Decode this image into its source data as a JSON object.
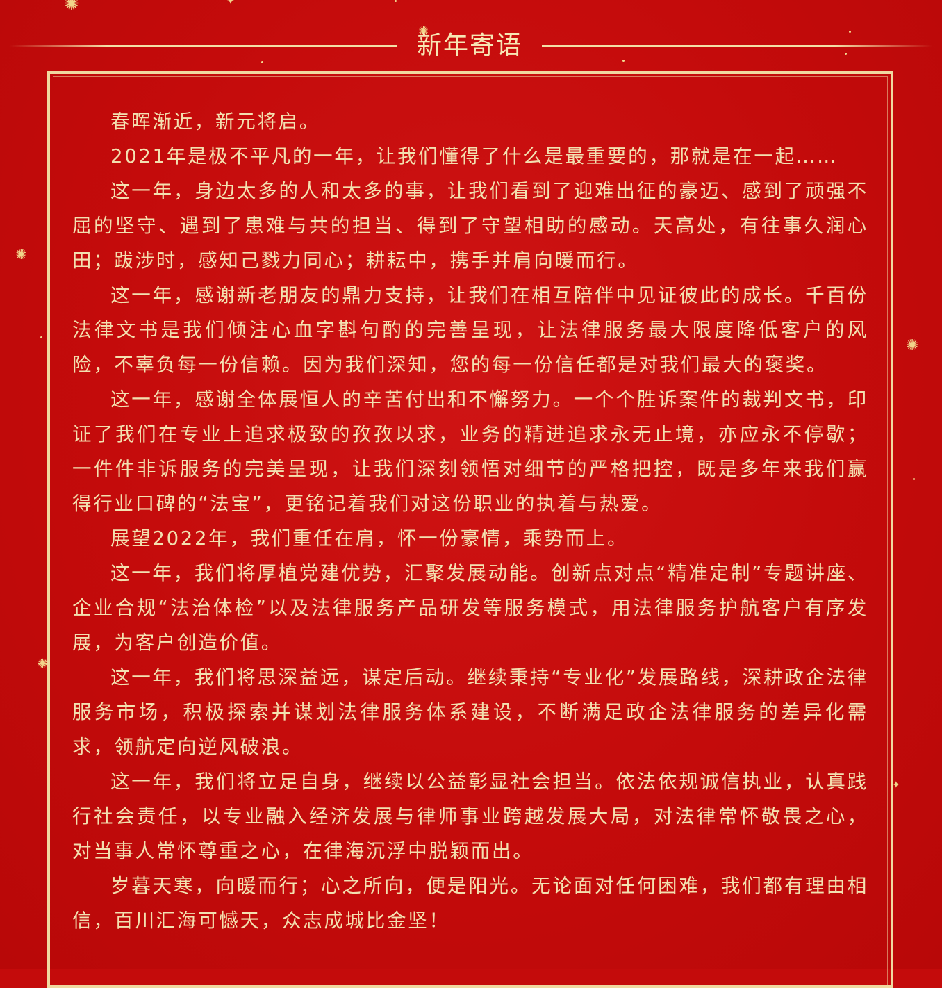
{
  "title": "新年寄语",
  "paragraphs": [
    "春晖渐近，新元将启。",
    "2021年是极不平凡的一年，让我们懂得了什么是最重要的，那就是在一起……",
    "这一年，身边太多的人和太多的事，让我们看到了迎难出征的豪迈、感到了顽强不屈的坚守、遇到了患难与共的担当、得到了守望相助的感动。天高处，有往事久润心田；跋涉时，感知己戮力同心；耕耘中，携手并肩向暖而行。",
    "这一年，感谢新老朋友的鼎力支持，让我们在相互陪伴中见证彼此的成长。千百份法律文书是我们倾注心血字斟句酌的完善呈现，让法律服务最大限度降低客户的风险，不辜负每一份信赖。因为我们深知，您的每一份信任都是对我们最大的褒奖。",
    "这一年，感谢全体展恒人的辛苦付出和不懈努力。一个个胜诉案件的裁判文书，印证了我们在专业上追求极致的孜孜以求，业务的精进追求永无止境，亦应永不停歇；一件件非诉服务的完美呈现，让我们深刻领悟对细节的严格把控，既是多年来我们赢得行业口碑的“法宝”，更铭记着我们对这份职业的执着与热爱。",
    "展望2022年，我们重任在肩，怀一份豪情，乘势而上。",
    "这一年，我们将厚植党建优势，汇聚发展动能。创新点对点“精准定制”专题讲座、企业合规“法治体检”以及法律服务产品研发等服务模式，用法律服务护航客户有序发展，为客户创造价值。",
    "这一年，我们将思深益远，谋定后动。继续秉持“专业化”发展路线，深耕政企法律服务市场，积极探索并谋划法律服务体系建设，不断满足政企法律服务的差异化需求，领航定向逆风破浪。",
    " 这一年，我们将立足自身，继续以公益彰显社会担当。依法依规诚信执业，认真践行社会责任，以专业融入经济发展与律师事业跨越发展大局，对法律常怀敬畏之心，对当事人常怀尊重之心，在律海沉浮中脱颖而出。",
    "岁暮天寒，向暖而行；心之所向，便是阳光。无论面对任何困难，我们都有理由相信，百川汇海可憾天，众志成城比金坚！"
  ],
  "colors": {
    "background": "#c40b0b",
    "gold": "#f0d8a0",
    "text": "#f3e0b0"
  },
  "decorations": {
    "sparkle_icon": "firework-sparkle-icon"
  }
}
